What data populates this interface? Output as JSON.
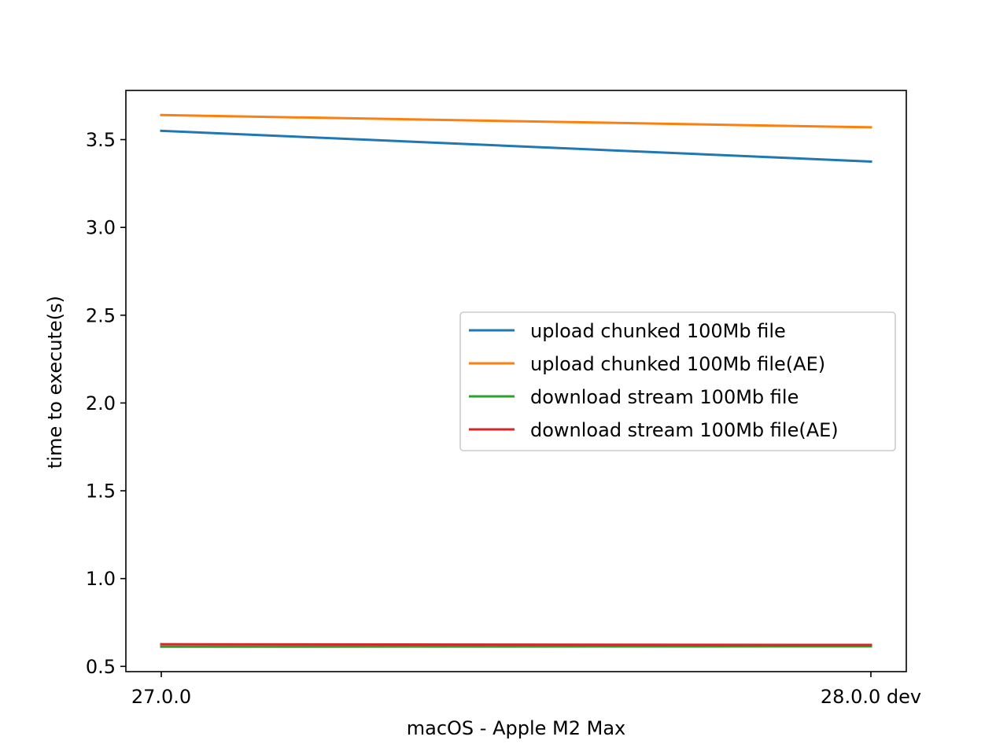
{
  "chart_data": {
    "type": "line",
    "categories": [
      "27.0.0",
      "28.0.0 dev"
    ],
    "xlabel": "macOS - Apple M2 Max",
    "ylabel": "time to execute(s)",
    "ylim": [
      0.47,
      3.78
    ],
    "yticks": [
      0.5,
      1.0,
      1.5,
      2.0,
      2.5,
      3.0,
      3.5
    ],
    "ytick_labels": [
      "0.5",
      "1.0",
      "1.5",
      "2.0",
      "2.5",
      "3.0",
      "3.5"
    ],
    "grid": false,
    "legend_position": "center-right",
    "series": [
      {
        "name": "upload chunked 100Mb file",
        "values": [
          3.55,
          3.375
        ],
        "color": "#1f77b4"
      },
      {
        "name": "upload chunked 100Mb file(AE)",
        "values": [
          3.64,
          3.57
        ],
        "color": "#ff7f0e"
      },
      {
        "name": "download stream 100Mb file",
        "values": [
          0.612,
          0.614
        ],
        "color": "#2ca02c"
      },
      {
        "name": "download stream 100Mb file(AE)",
        "values": [
          0.626,
          0.622
        ],
        "color": "#d62728"
      }
    ]
  }
}
